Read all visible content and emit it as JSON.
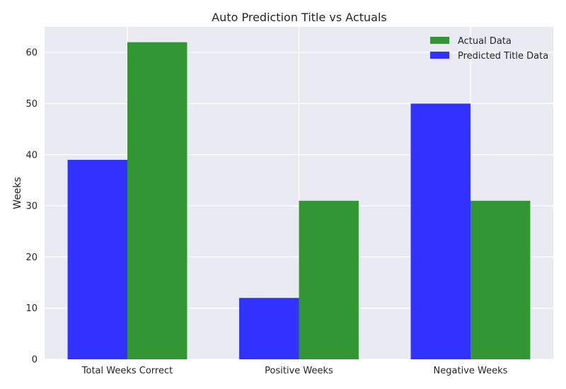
{
  "chart_data": {
    "type": "bar",
    "title": "Auto Prediction Title vs Actuals",
    "xlabel": "",
    "ylabel": "Weeks",
    "categories": [
      "Total Weeks Correct",
      "Positive Weeks",
      "Negative Weeks"
    ],
    "series": [
      {
        "name": "Predicted Title Data",
        "values": [
          39,
          12,
          50
        ],
        "color": "#3232FF"
      },
      {
        "name": "Actual Data",
        "values": [
          62,
          31,
          31
        ],
        "color": "#329632"
      }
    ],
    "legend_order": [
      "Actual Data",
      "Predicted Title Data"
    ],
    "ylim": [
      0,
      65
    ],
    "yticks": [
      0,
      10,
      20,
      30,
      40,
      50,
      60
    ],
    "grid": true,
    "legend_position": "top-right",
    "background_color": "#EAEAF2"
  }
}
